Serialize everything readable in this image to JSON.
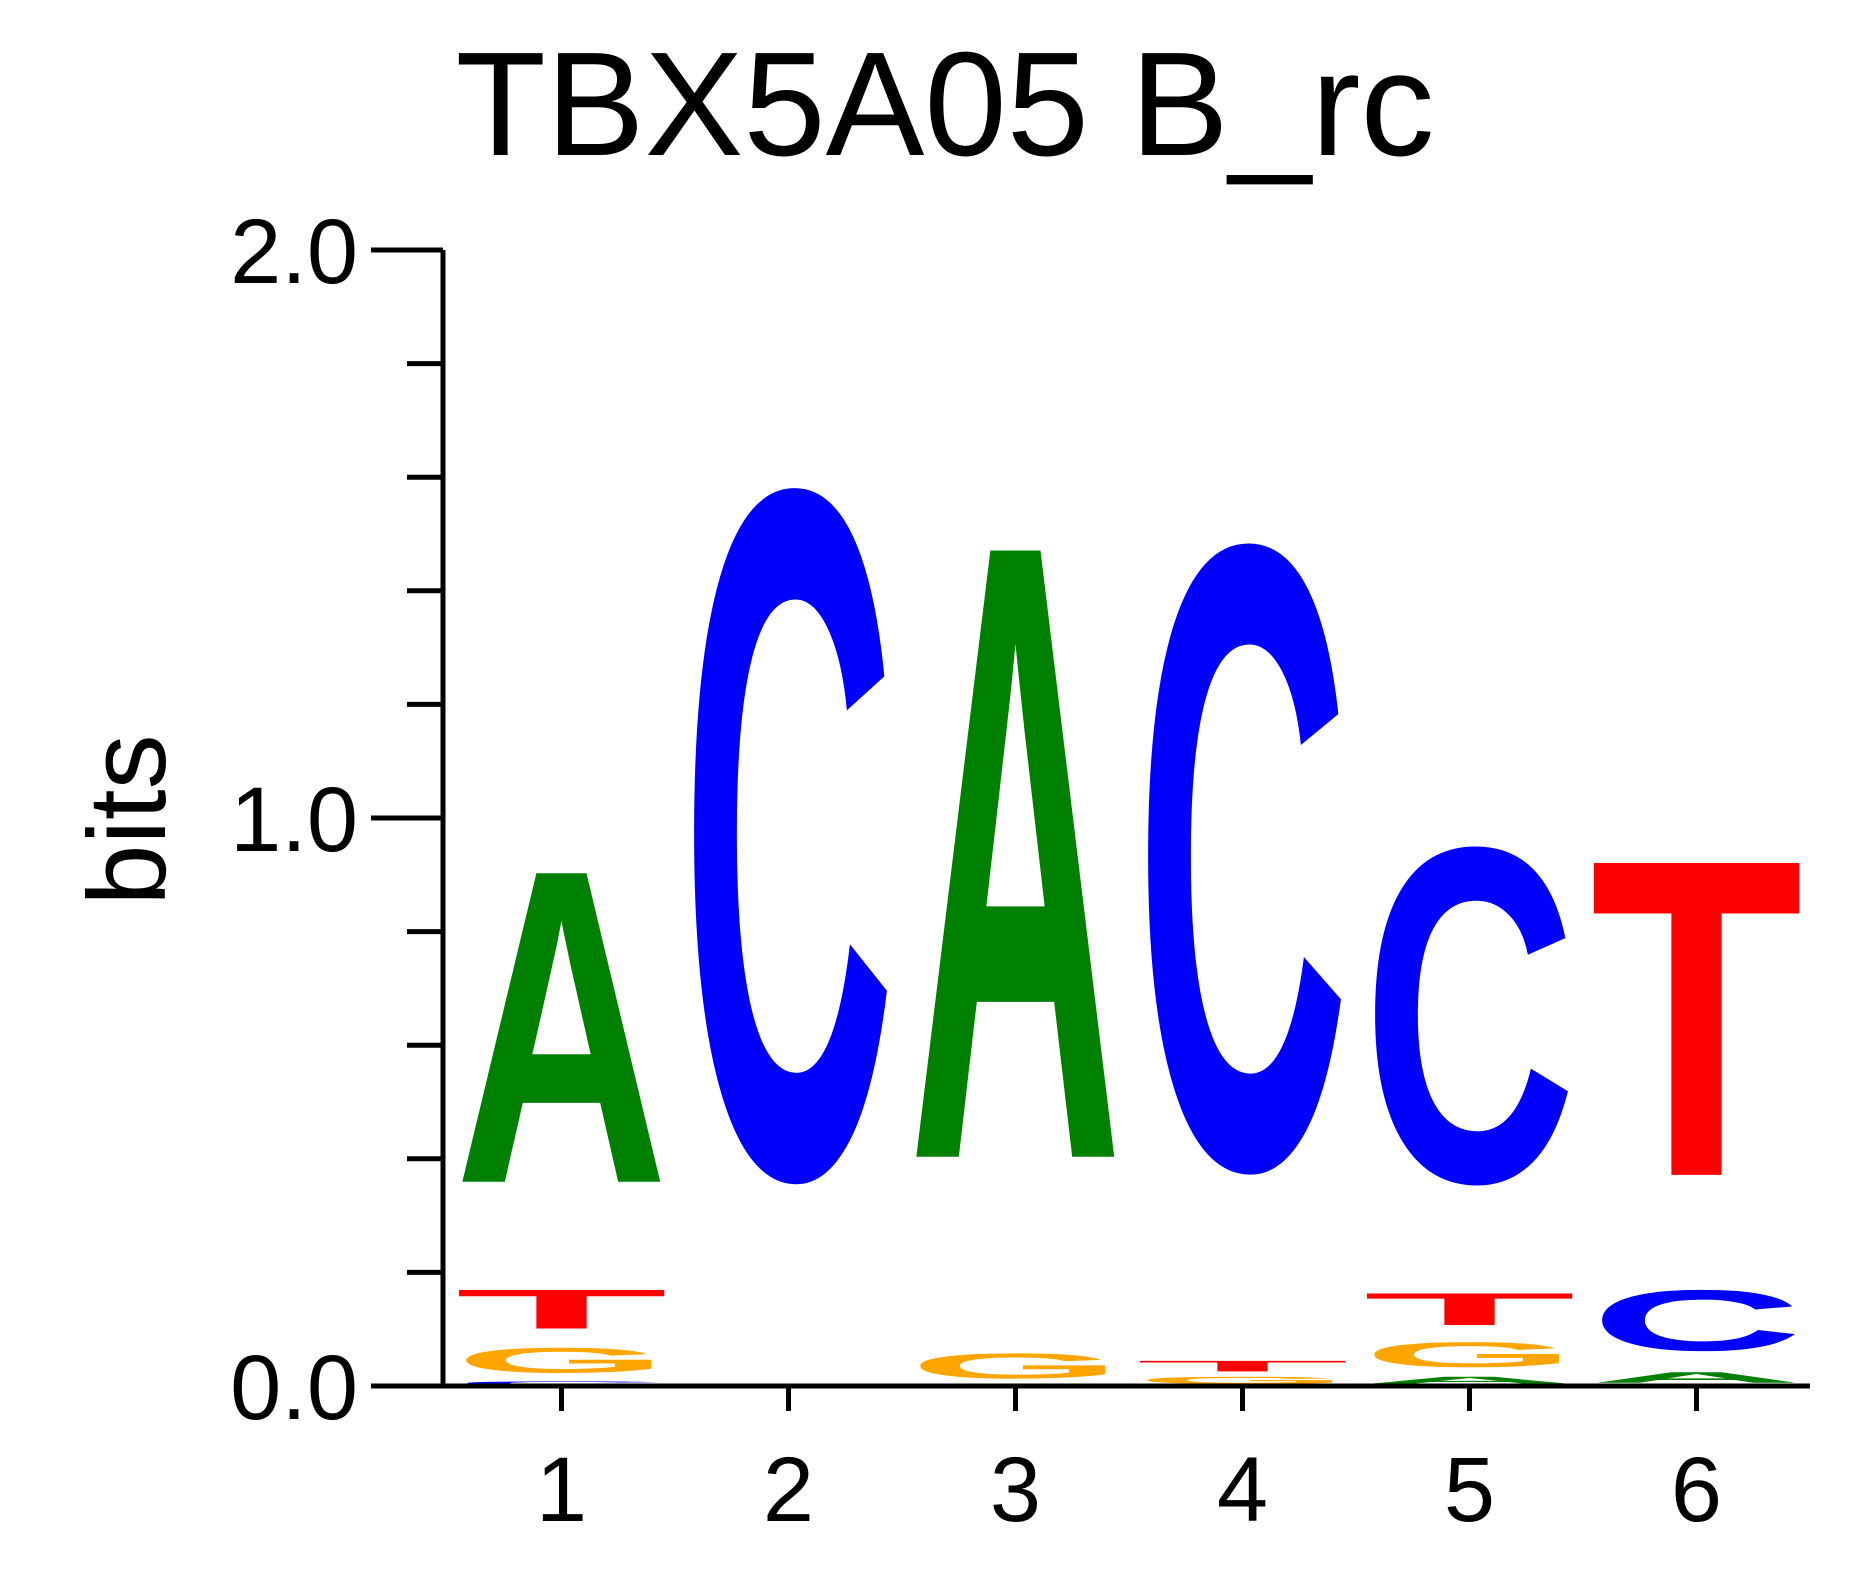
{
  "chart_data": {
    "type": "sequence-logo",
    "title": "TBX5A05 B_rc",
    "ylabel": "bits",
    "ylim": [
      0,
      2.0
    ],
    "y_ticks": [
      {
        "value": 0.0,
        "label": "0.0"
      },
      {
        "value": 1.0,
        "label": "1.0"
      },
      {
        "value": 2.0,
        "label": "2.0"
      }
    ],
    "y_minor_ticks": [
      0.2,
      0.4,
      0.6,
      0.8,
      1.2,
      1.4,
      1.6,
      1.8
    ],
    "positions": [
      "1",
      "2",
      "3",
      "4",
      "5",
      "6"
    ],
    "colors": {
      "A": "#008000",
      "C": "#0000ff",
      "G": "#ffa500",
      "T": "#ff0000"
    },
    "stacks": [
      [
        {
          "base": "C",
          "height": 0.01
        },
        {
          "base": "G",
          "height": 0.07
        },
        {
          "base": "T",
          "height": 0.11
        },
        {
          "base": "A",
          "height": 0.88
        }
      ],
      [
        {
          "base": "C",
          "height": 1.93
        }
      ],
      [
        {
          "base": "G",
          "height": 0.07
        },
        {
          "base": "A",
          "height": 1.73
        }
      ],
      [
        {
          "base": "G",
          "height": 0.02
        },
        {
          "base": "T",
          "height": 0.03
        },
        {
          "base": "C",
          "height": 1.75
        }
      ],
      [
        {
          "base": "A",
          "height": 0.02
        },
        {
          "base": "G",
          "height": 0.07
        },
        {
          "base": "T",
          "height": 0.09
        },
        {
          "base": "C",
          "height": 0.94
        }
      ],
      [
        {
          "base": "A",
          "height": 0.03
        },
        {
          "base": "C",
          "height": 0.17
        },
        {
          "base": "T",
          "height": 0.89
        }
      ]
    ]
  }
}
